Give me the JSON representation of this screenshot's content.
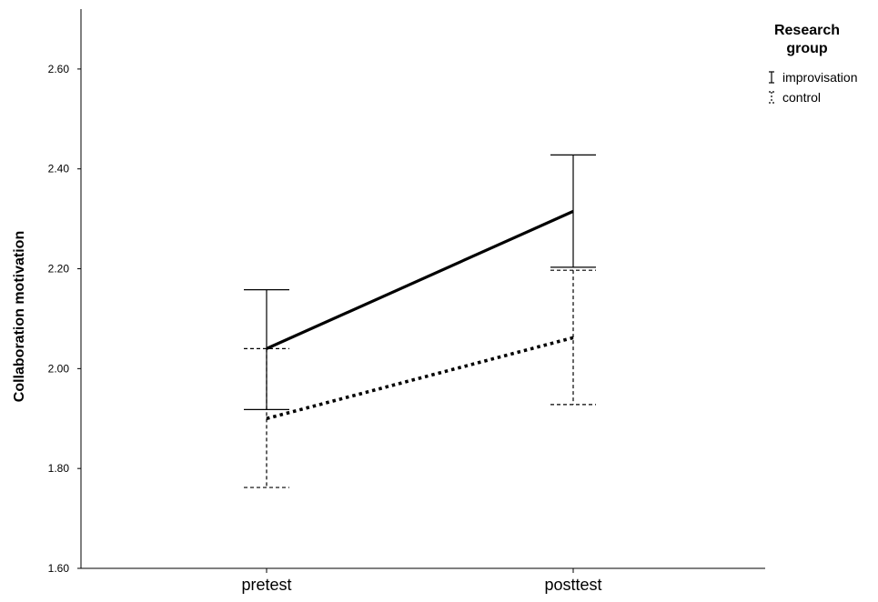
{
  "chart_data": {
    "type": "line",
    "title": "",
    "xlabel": "",
    "ylabel": "Collaboration motivation",
    "categories": [
      "pretest",
      "posttest"
    ],
    "ylim": [
      1.6,
      2.72
    ],
    "yticks": [
      "1.60",
      "1.80",
      "2.00",
      "2.20",
      "2.40",
      "2.60"
    ],
    "grid": false,
    "legend": {
      "title_line1": "Research",
      "title_line2": "group",
      "position": "top-right"
    },
    "series": [
      {
        "name": "improvisation",
        "style": "solid",
        "color": "#000000",
        "values": [
          2.04,
          2.315
        ],
        "error_low": [
          1.918,
          2.203
        ],
        "error_high": [
          2.158,
          2.428
        ]
      },
      {
        "name": "control",
        "style": "dotted",
        "color": "#000000",
        "values": [
          1.9,
          2.062
        ],
        "error_low": [
          1.762,
          1.928
        ],
        "error_high": [
          2.04,
          2.197
        ]
      }
    ]
  }
}
